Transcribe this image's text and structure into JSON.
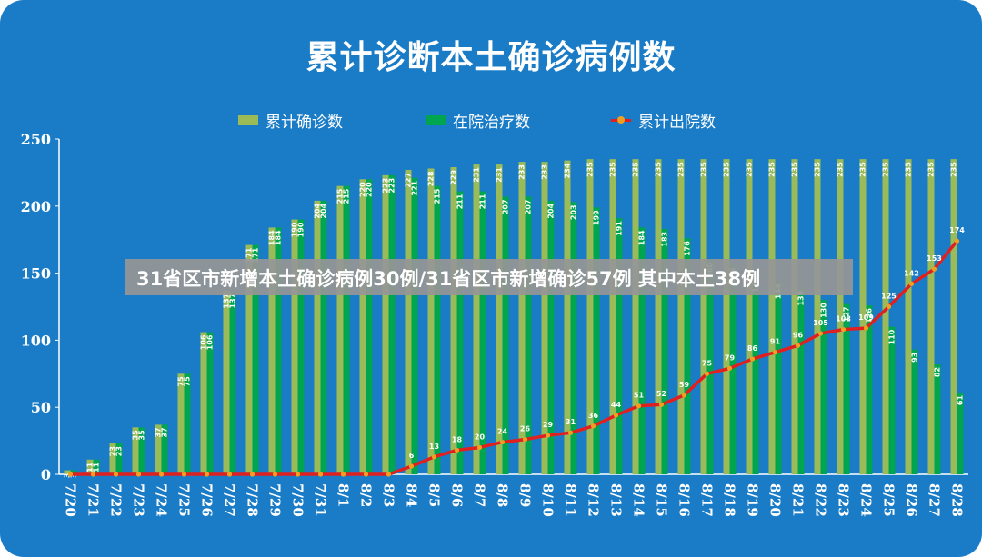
{
  "title": "累计诊断本土确诊病例数",
  "banner": "31省区市新增本土确诊病例30例/31省区市新增确诊57例 其中本土38例",
  "legend": {
    "cumulative": "累计确诊数",
    "inHospital": "在院治疗数",
    "discharged": "累计出院数"
  },
  "colors": {
    "background": "#1a7cc6",
    "cumulative": "#9bbb59",
    "inHospital": "#00a550",
    "discharged": "#e02020",
    "marker": "#f0a020"
  },
  "chart_data": {
    "type": "bar",
    "title": "累计诊断本土确诊病例数",
    "categories": [
      "7/20",
      "7/21",
      "7/22",
      "7/23",
      "7/24",
      "7/25",
      "7/26",
      "7/27",
      "7/28",
      "7/29",
      "7/30",
      "7/31",
      "8/1",
      "8/2",
      "8/3",
      "8/4",
      "8/5",
      "8/6",
      "8/7",
      "8/8",
      "8/9",
      "8/10",
      "8/11",
      "8/12",
      "8/13",
      "8/14",
      "8/15",
      "8/16",
      "8/17",
      "8/18",
      "8/19",
      "8/20",
      "8/21",
      "8/22",
      "8/23",
      "8/24",
      "8/25",
      "8/26",
      "8/27",
      "8/28"
    ],
    "ylim": [
      0,
      250
    ],
    "yticks": [
      0,
      50,
      100,
      150,
      200,
      250
    ],
    "grid": false,
    "legend_position": "top",
    "series": [
      {
        "name": "累计确诊数",
        "type": "bar",
        "values": [
          3,
          11,
          23,
          35,
          37,
          75,
          106,
          137,
          171,
          184,
          190,
          204,
          215,
          220,
          223,
          227,
          228,
          229,
          231,
          231,
          233,
          233,
          234,
          235,
          235,
          235,
          235,
          235,
          235,
          235,
          235,
          235,
          235,
          235,
          235,
          235,
          235,
          235,
          235,
          235
        ]
      },
      {
        "name": "在院治疗数",
        "type": "bar",
        "values": [
          3,
          11,
          23,
          35,
          37,
          75,
          106,
          137,
          171,
          184,
          190,
          204,
          215,
          220,
          223,
          221,
          215,
          211,
          211,
          207,
          207,
          204,
          203,
          199,
          191,
          184,
          183,
          176,
          160,
          156,
          149,
          144,
          139,
          130,
          127,
          126,
          110,
          93,
          82,
          61
        ]
      },
      {
        "name": "累计出院数",
        "type": "line",
        "values": [
          0,
          0,
          0,
          0,
          0,
          0,
          0,
          0,
          0,
          0,
          0,
          0,
          0,
          0,
          0,
          6,
          13,
          18,
          20,
          24,
          26,
          29,
          31,
          36,
          44,
          51,
          52,
          59,
          75,
          79,
          86,
          91,
          96,
          105,
          108,
          109,
          125,
          142,
          153,
          174
        ]
      }
    ]
  }
}
